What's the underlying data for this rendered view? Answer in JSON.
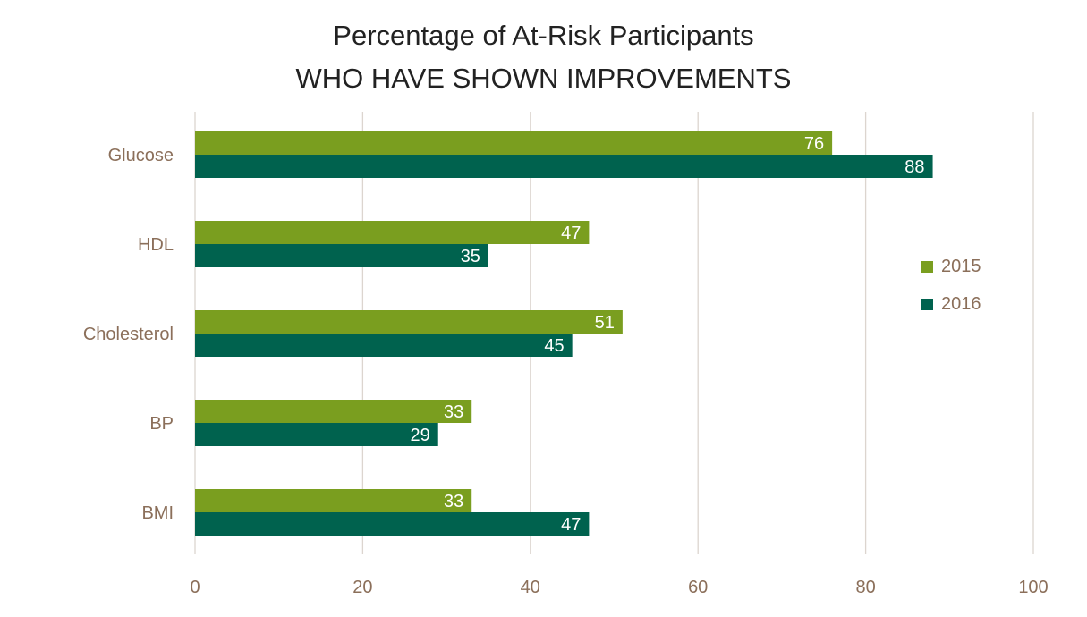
{
  "chart_data": {
    "type": "bar",
    "orientation": "horizontal",
    "title": "Percentage of At-Risk Participants",
    "subtitle": "WHO HAVE SHOWN IMPROVEMENTS",
    "categories": [
      "Glucose",
      "HDL",
      "Cholesterol",
      "BP",
      "BMI"
    ],
    "series": [
      {
        "name": "2015",
        "color": "#7a9e1f",
        "values": [
          76,
          47,
          51,
          33,
          33
        ]
      },
      {
        "name": "2016",
        "color": "#00624e",
        "values": [
          88,
          35,
          45,
          29,
          47
        ]
      }
    ],
    "xlim": [
      0,
      100
    ],
    "xticks": [
      "0",
      "20",
      "40",
      "60",
      "80",
      "100"
    ],
    "grid": true,
    "data_labels": true,
    "legend_position": "right",
    "colors": {
      "axis_text": "#8b6f5a",
      "title": "#222222",
      "grid": "#dcd5cf",
      "data_label": "#ffffff"
    }
  }
}
